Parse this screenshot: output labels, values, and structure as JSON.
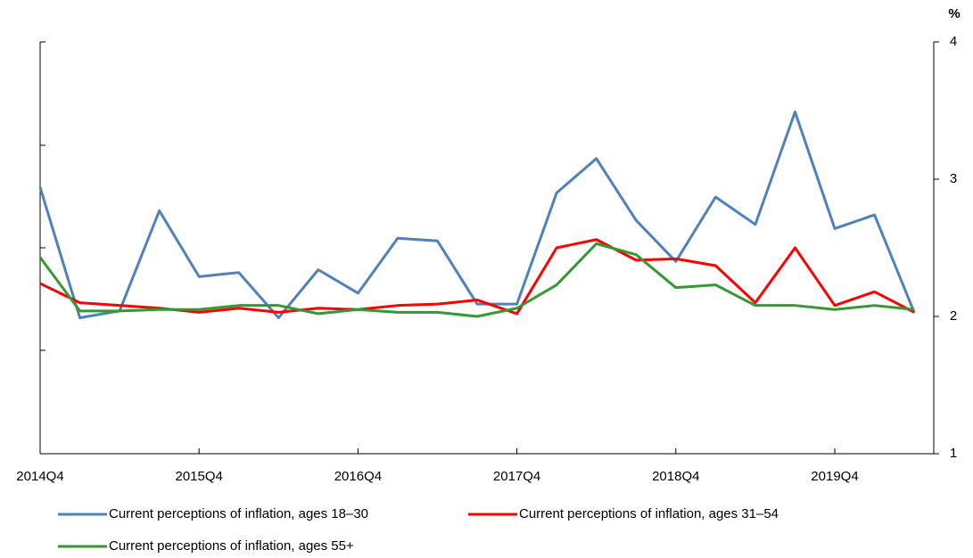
{
  "chart_data": {
    "type": "line",
    "y_label": "%",
    "categories": [
      "2014Q4",
      null,
      null,
      null,
      "2015Q4",
      null,
      null,
      null,
      "2016Q4",
      null,
      null,
      null,
      "2017Q4",
      null,
      null,
      null,
      "2018Q4",
      null,
      null,
      null,
      "2019Q4",
      null,
      null
    ],
    "series": [
      {
        "name": "Current perceptions of inflation, ages 18–30",
        "color": "#4f81bd",
        "values": [
          2.94,
          1.99,
          2.04,
          2.77,
          2.29,
          2.32,
          1.99,
          2.34,
          2.17,
          2.57,
          2.55,
          2.09,
          2.09,
          2.9,
          3.15,
          2.7,
          2.4,
          2.87,
          2.67,
          3.49,
          2.64,
          2.74,
          2.03
        ]
      },
      {
        "name": "Current perceptions of inflation, ages 31–54",
        "color": "#ff0000",
        "values": [
          2.24,
          2.1,
          2.08,
          2.06,
          2.03,
          2.06,
          2.03,
          2.06,
          2.05,
          2.08,
          2.09,
          2.12,
          2.02,
          2.5,
          2.56,
          2.41,
          2.42,
          2.37,
          2.1,
          2.5,
          2.08,
          2.18,
          2.03
        ]
      },
      {
        "name": "Current perceptions of inflation, ages 55+",
        "color": "#339933",
        "values": [
          2.43,
          2.04,
          2.04,
          2.05,
          2.05,
          2.08,
          2.08,
          2.02,
          2.05,
          2.03,
          2.03,
          2.0,
          2.06,
          2.23,
          2.53,
          2.45,
          2.21,
          2.23,
          2.08,
          2.08,
          2.05,
          2.08,
          2.05
        ]
      }
    ],
    "ylim": [
      1,
      4
    ],
    "yticks": [
      1,
      2,
      3,
      4
    ],
    "grid": false
  }
}
